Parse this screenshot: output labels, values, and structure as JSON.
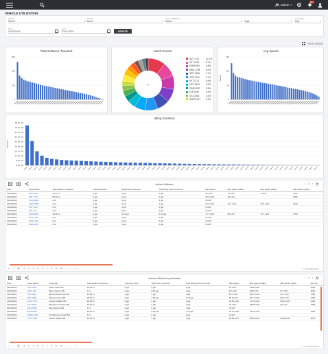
{
  "header": {
    "org_name": "Mitroh",
    "notif_count": "99+",
    "search_placeholder": ""
  },
  "page": {
    "title": "VEHICLE UTILIZATION",
    "edit_layout": "EDIT LAYOUT"
  },
  "filters": {
    "group_label": "Group",
    "group_value": "Select",
    "vehicle_label": "Vehicle",
    "vehicle_value": "Select",
    "asset_label": "Asset Attributes",
    "asset_value": "Select",
    "tags_value": "Tags",
    "groupby_label": "Group By",
    "groupby_value": "Day",
    "start_label": "Start",
    "start_value": "01/01/2024",
    "end_label": "End",
    "end_value": "01/01/2024",
    "update_label": "UPDATE"
  },
  "charts": {
    "distance_title": "Total Distance Traveled",
    "events_title": "Harsh Events",
    "speed_title": "Avg Speed",
    "mileage_title": "Idling Overtime",
    "donut_center": "47"
  },
  "chart_data": [
    {
      "type": "bar",
      "title": "Total Distance Traveled",
      "ylim": [
        0,
        300
      ],
      "yticks": [
        "300",
        "200",
        "100",
        "0"
      ],
      "categories": [
        "",
        "",
        "",
        "",
        "",
        "",
        "",
        "",
        "",
        "",
        "",
        "",
        "",
        "",
        "",
        "",
        "",
        "",
        "",
        "",
        "",
        "",
        "",
        "",
        "",
        "",
        "",
        "",
        "",
        "",
        "",
        "",
        "",
        "",
        "",
        "",
        "",
        "",
        "",
        "",
        "",
        ""
      ],
      "values": [
        265,
        168,
        150,
        140,
        133,
        128,
        124,
        120,
        116,
        112,
        108,
        104,
        100,
        97,
        94,
        91,
        88,
        85,
        82,
        79,
        76,
        73,
        70,
        67,
        64,
        61,
        58,
        55,
        52,
        49,
        46,
        43,
        40,
        37,
        33,
        29,
        25,
        20,
        15,
        10,
        5,
        2
      ],
      "color": "#3f6ec9"
    },
    {
      "type": "pie",
      "title": "Harsh Events",
      "slices": [
        {
          "name": "AUT 1721",
          "value": 10.7,
          "label": "10.7%",
          "color": "#e53950"
        },
        {
          "name": "PKT 1234",
          "value": 8.7,
          "label": "8.7%",
          "color": "#e8489a"
        },
        {
          "name": "ENSKSNY",
          "value": 8.4,
          "label": "8.4%",
          "color": "#c93aa8"
        },
        {
          "name": "AWD 1798",
          "value": 8.0,
          "label": "8.0%",
          "color": "#7e3fc6"
        },
        {
          "name": "WTZ 1985",
          "value": 7.7,
          "label": "7.7%",
          "color": "#3f51b5"
        },
        {
          "name": "GFP 1276",
          "value": 7.7,
          "label": "7.7%",
          "color": "#2196f3"
        },
        {
          "name": "PKT 1771",
          "value": 6.8,
          "label": "6.8%",
          "color": "#03a9f4"
        },
        {
          "name": "WTZ 2644",
          "value": 4.9,
          "label": "4.9%",
          "color": "#00bcd4"
        },
        {
          "name": "ZJNEV957",
          "value": 3.8,
          "label": "3.8%",
          "color": "#009688"
        },
        {
          "name": "KLE 1835",
          "value": 3.6,
          "label": "3.6%",
          "color": "#4caf50"
        },
        {
          "name": "GTZ 2904",
          "value": 3.1,
          "label": "3.1%",
          "color": "#8bc34a"
        },
        {
          "name": "ZNEDP417",
          "value": 2.9,
          "label": "2.9%",
          "color": "#cddc39"
        },
        {
          "name": "",
          "value": 4.0,
          "color": "#ffeb3b"
        },
        {
          "name": "",
          "value": 3.5,
          "color": "#ffc107"
        },
        {
          "name": "",
          "value": 3.2,
          "color": "#ff9800"
        },
        {
          "name": "",
          "value": 3.0,
          "color": "#ff5722"
        },
        {
          "name": "",
          "value": 2.6,
          "color": "#795548"
        },
        {
          "name": "",
          "value": 2.3,
          "color": "#9e9e9e"
        },
        {
          "name": "",
          "value": 2.1,
          "color": "#607d8b"
        },
        {
          "name": "",
          "value": 1.9,
          "color": "#424242"
        }
      ]
    },
    {
      "type": "bar",
      "title": "Avg Speed",
      "ylabel": "Speed",
      "ylim": [
        0,
        150
      ],
      "yticks": [
        "150",
        "100",
        "50",
        "0"
      ],
      "values": [
        128,
        94,
        84,
        80,
        78,
        76,
        74,
        72,
        70,
        68,
        67,
        66,
        64,
        63,
        62,
        60,
        59,
        58,
        57,
        55,
        54,
        53,
        52,
        50,
        49,
        48,
        46,
        45,
        44,
        42,
        41,
        40,
        38,
        37,
        36,
        34,
        33,
        32,
        30,
        28,
        26,
        24,
        21,
        18,
        14,
        10
      ],
      "color": "#3f6ec9"
    },
    {
      "type": "bar",
      "title": "Idling Overtime",
      "ylabel": "Duration",
      "yticks": [
        "78.8m 0s",
        "70.0m 0s",
        "61.3m 0s",
        "52.5m 0s",
        "43.8m 0s",
        "35.0m 0s",
        "26.3m 0s",
        "17.5m 0s",
        "8.8m 0s",
        "0.0m 0s"
      ],
      "ylim": [
        0,
        78.8
      ],
      "values": [
        74,
        45,
        26,
        18,
        14,
        12,
        11,
        10,
        9.5,
        9,
        8.6,
        8.2,
        7.8,
        7.4,
        7,
        6.7,
        6.4,
        6.1,
        5.8,
        5.5,
        5.3,
        5.1,
        4.9,
        4.7,
        4.5,
        4.3,
        4.1,
        3.9,
        3.7,
        3.5,
        3.3,
        3.1,
        2.9,
        2.7,
        2.5,
        2.3,
        2.2,
        2.1,
        2,
        1.9,
        1.8,
        1.7,
        1.6,
        1.5,
        1.4,
        1.3,
        1.2,
        1.1,
        1.0,
        0.9,
        0.8,
        0.7,
        0.6,
        0.5,
        0.4,
        0.4,
        0.3,
        0.3,
        0.2,
        0.2
      ],
      "color": "#3f6ec9"
    }
  ],
  "table1": {
    "caption": "Vehicle Utilization",
    "page_info": "1 - 10 of 2471 items",
    "headers": [
      "Date",
      "Asset Name",
      "Total Distance Traveled",
      "Total Fuel Used",
      "Total Fuel Consumed",
      "Total Idling Fuel Consumed",
      "Max Speed",
      "Max Speed (OBD)",
      "Max Speed (GPS)",
      "Max Speed (GPS)"
    ],
    "rows": [
      [
        "01/01/2024",
        "ZZC1 186",
        "141.4 mi",
        "0 gal",
        "0 gal",
        "0 gal",
        "40 mi/hr",
        "31 mi/hr",
        "8 mi/hr",
        "2221"
      ],
      [
        "01/01/2024",
        "PKT 1770",
        "58.06 mi",
        "0 gal",
        "0 gal",
        "0 gal",
        "33.5 mi/hr",
        "25 mi/hr",
        "",
        "3846"
      ],
      [
        "01/01/2024",
        "ZSHI 9099",
        "0 mi",
        "0 gal",
        "0 gal",
        "0 gal",
        "0 mi/hr",
        "",
        "",
        ""
      ],
      [
        "01/01/2024",
        "AWD 1785",
        "0 mi",
        "0 gal",
        "0 gal",
        "0 gal",
        "23.6 mi/hr",
        "21.7 mi/hr",
        "23.6 mi/hr",
        "2164"
      ],
      [
        "01/01/2024",
        "PKT 1661",
        "0 mi",
        "0 gal",
        "0 gal",
        "0 gal",
        "0 mi/hr",
        "",
        "",
        ""
      ],
      [
        "01/01/2024",
        "PKT 142",
        "0 mi",
        "0 gal",
        "0 gal",
        "0 gal",
        "0 mi/hr",
        "",
        "",
        ""
      ],
      [
        "01/01/2024",
        "ZSHI 9099",
        "33.05 mi",
        "0 gal",
        "1.81 gal",
        "0.19 gal",
        "72.7 mi/hr",
        "59 mi/hr",
        "72.7 mi/hr",
        "4752"
      ],
      [
        "01/01/2024",
        "PKNY 241",
        "0 mi",
        "0 gal",
        "0 gal",
        "0 gal",
        "0 mi/hr",
        "",
        "",
        ""
      ],
      [
        "01/01/2024",
        "PKNY 241",
        "0 mi",
        "0 gal",
        "0 gal",
        "0 gal",
        "0 mi/hr",
        "",
        "",
        ""
      ],
      [
        "01/01/2024",
        "DEN 4120",
        "0 mi",
        "0 gal",
        "0 gal",
        "0 gal",
        "0 mi/hr",
        "",
        "",
        ""
      ]
    ],
    "pages": [
      "1",
      "2",
      "3",
      "4",
      "5",
      "6",
      "7",
      "8",
      "9",
      "10",
      "..."
    ],
    "first": "«",
    "prev": "‹",
    "next": "›",
    "last": "»"
  },
  "table2": {
    "caption": "Vehicle Utilization by Associate",
    "page_info": "1 - 10 of 2471 items",
    "headers": [
      "Date",
      "Asset Name",
      "Associate",
      "Total Distance Traveled",
      "Total Fuel Used",
      "Total Fuel Consumed",
      "Total Idling Fuel Consumed",
      "Max Speed",
      "Max Speed (OBD)",
      "Max Speed (GPS)",
      "Max Sp"
    ],
    "rows": [
      [
        "01/01/2024",
        "PKD 1391",
        "Ewan Collin 392",
        "15.04 mi",
        "0 gal",
        "0 gal",
        "0 gal",
        "33 mi/hr",
        "32.88 mi/hr",
        "",
        "3605"
      ],
      [
        "01/01/2024",
        "LDKY 181",
        "Bruce Nelson 381",
        "0 mi",
        "0 gal",
        "0.02 gal",
        "0 gal",
        "8.7 mi/hr",
        "8.88 mi/hr",
        "8.7 mi/hr",
        "1183"
      ],
      [
        "01/01/2024",
        "PKD 1391",
        "Brandi Wisford Gol 391",
        "48.98 mi",
        "0 gal",
        "0 gal",
        "0 gal",
        "54.7 mi/hr",
        "53.97 mi/hr",
        "54.7 mi/hr",
        "1385"
      ],
      [
        "01/01/2024",
        "PKD 1085",
        "Maxime Curie 395",
        "28.52 mi",
        "0 gal",
        "1.08 gal",
        "0.22 gal",
        "60.8 mi/hr",
        "50.77 mi/hr",
        "60.8 mi/hr",
        "2445"
      ],
      [
        "01/01/2024",
        "ZSCJ 2772",
        "Kirsten Fl&ffied 394",
        "28.58 mi",
        "0 gal",
        "0 gal",
        "0 gal",
        "39.63 mi/hr",
        "37.78 mi/hr",
        "39.63 mi/hr",
        "2418"
      ],
      [
        "01/01/2024",
        "KIZT 5391",
        "Benjamin Konsuite 394",
        "18.52 mi",
        "0 gal",
        "0 gal",
        "0 gal",
        "20 mi/hr",
        "18.88 mi/hr",
        "20 mi/hr",
        "1483"
      ],
      [
        "01/01/2024",
        "ZSHI 9099",
        "Ben Himmel 394",
        "0 mi",
        "0 gal",
        "0 gal",
        "0 gal",
        "0 mi/hr",
        "",
        "",
        ""
      ],
      [
        "01/01/2024",
        "ZSHI 9099",
        "",
        "19.87 mi",
        "0 gal",
        "0.00 gal",
        "0.11 gal",
        "44.76 mi/hr",
        "44.76 mi/hr",
        "",
        "1283"
      ],
      [
        "01/01/2024",
        "ZWEE 7391",
        "Ali Mohanuzr Dooft 390",
        "0 mi",
        "0 gal",
        "0 gal",
        "0 gal",
        "0 mi/hr",
        "",
        "",
        ""
      ],
      [
        "01/01/2024",
        "PKT1 2892",
        "Adrian Fielder 389",
        "38.53 mi",
        "0 gal",
        "0 gal",
        "0 gal",
        "38.98 mi/hr",
        "38.38 mi/hr",
        "38.98 mi/hr",
        "3875"
      ]
    ],
    "pages": [
      "1",
      "2",
      "3",
      "4",
      "5",
      "6",
      "7",
      "8",
      "9",
      "10",
      "..."
    ],
    "first": "«",
    "prev": "‹",
    "next": "›",
    "last": "»"
  },
  "colors": {
    "topbar": "#2b2f33",
    "bar": "#3f6ec9",
    "link": "#3b6fd6",
    "scroll": "#e4795b"
  },
  "icons": [
    "menu-icon",
    "search-icon",
    "chevron-down-icon",
    "gear-icon",
    "bell-icon",
    "user-icon",
    "calendar-icon",
    "grid-icon",
    "table-icon",
    "share-icon",
    "refresh-icon"
  ]
}
